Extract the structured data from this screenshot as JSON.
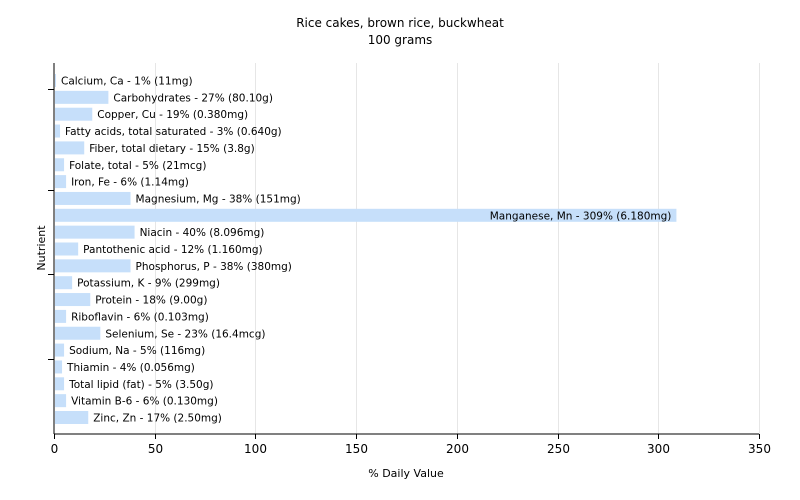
{
  "chart_data": {
    "type": "bar",
    "orientation": "horizontal",
    "title": "Rice cakes, brown rice, buckwheat",
    "subtitle": "100 grams",
    "xlabel": "% Daily Value",
    "ylabel": "Nutrient",
    "xlim": [
      0,
      350
    ],
    "xticks": [
      0,
      50,
      100,
      150,
      200,
      250,
      300,
      350
    ],
    "grid": "vertical",
    "bar_color": "#c6dffa",
    "grid_color": "#e6e6e6",
    "categories": [
      "Calcium, Ca",
      "Carbohydrates",
      "Copper, Cu",
      "Fatty acids, total saturated",
      "Fiber, total dietary",
      "Folate, total",
      "Iron, Fe",
      "Magnesium, Mg",
      "Manganese, Mn",
      "Niacin",
      "Pantothenic acid",
      "Phosphorus, P",
      "Potassium, K",
      "Protein",
      "Riboflavin",
      "Selenium, Se",
      "Sodium, Na",
      "Thiamin",
      "Total lipid (fat)",
      "Vitamin B-6",
      "Zinc, Zn"
    ],
    "values": [
      1,
      27,
      19,
      3,
      15,
      5,
      6,
      38,
      309,
      40,
      12,
      38,
      9,
      18,
      6,
      23,
      5,
      4,
      5,
      6,
      17
    ],
    "bar_labels": [
      "Calcium, Ca - 1% (11mg)",
      "Carbohydrates - 27% (80.10g)",
      "Copper, Cu - 19% (0.380mg)",
      "Fatty acids, total saturated - 3% (0.640g)",
      "Fiber, total dietary - 15% (3.8g)",
      "Folate, total - 5% (21mcg)",
      "Iron, Fe - 6% (1.14mg)",
      "Magnesium, Mg - 38% (151mg)",
      "Manganese, Mn - 309% (6.180mg)",
      "Niacin - 40% (8.096mg)",
      "Pantothenic acid - 12% (1.160mg)",
      "Phosphorus, P - 38% (380mg)",
      "Potassium, K - 9% (299mg)",
      "Protein - 18% (9.00g)",
      "Riboflavin - 6% (0.103mg)",
      "Selenium, Se - 23% (16.4mcg)",
      "Sodium, Na - 5% (116mg)",
      "Thiamin - 4% (0.056mg)",
      "Total lipid (fat) - 5% (3.50g)",
      "Vitamin B-6 - 6% (0.130mg)",
      "Zinc, Zn - 17% (2.50mg)"
    ]
  }
}
